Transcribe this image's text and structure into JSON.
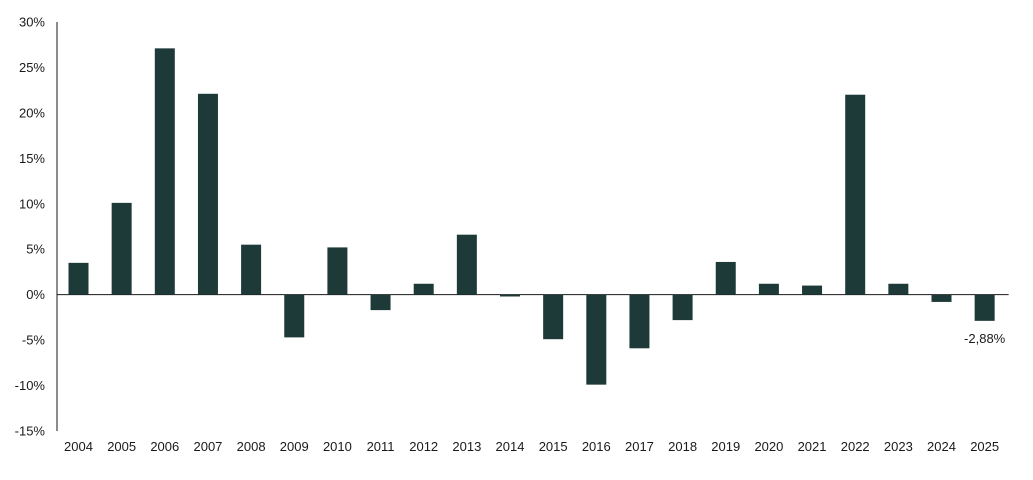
{
  "chart_data": {
    "type": "bar",
    "title": "",
    "xlabel": "",
    "ylabel": "",
    "categories": [
      "2004",
      "2005",
      "2006",
      "2007",
      "2008",
      "2009",
      "2010",
      "2011",
      "2012",
      "2013",
      "2014",
      "2015",
      "2016",
      "2017",
      "2018",
      "2019",
      "2020",
      "2021",
      "2022",
      "2023",
      "2024",
      "2025"
    ],
    "values": [
      3.5,
      10.1,
      27.1,
      22.1,
      5.5,
      -4.7,
      5.2,
      -1.7,
      1.2,
      6.6,
      -0.2,
      -4.9,
      -9.9,
      -5.9,
      -2.8,
      3.6,
      1.2,
      1.0,
      22.0,
      1.2,
      -0.8,
      -2.88
    ],
    "ylim": [
      -15,
      30
    ],
    "yticks": [
      30,
      25,
      20,
      15,
      10,
      5,
      0,
      -5,
      -10,
      -15
    ],
    "ytick_labels": [
      "30%",
      "25%",
      "20%",
      "15%",
      "10%",
      "5%",
      "0%",
      "-5%",
      "-10%",
      "-15%"
    ],
    "grid": false,
    "legend": "none",
    "bar_color": "#1e3a38",
    "annotations": [
      {
        "category": "2025",
        "text": "-2,88%"
      }
    ]
  }
}
